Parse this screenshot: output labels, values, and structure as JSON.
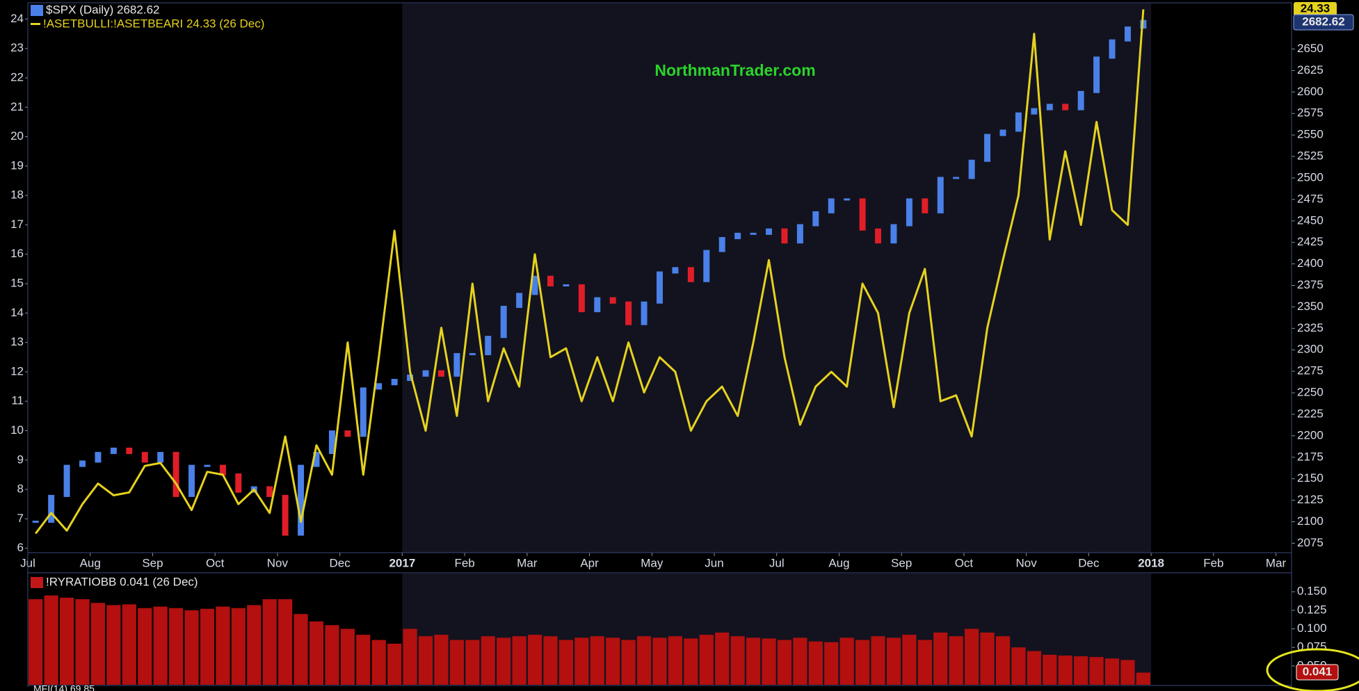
{
  "chart_data": [
    {
      "type": "line",
      "annotation": "NorthmanTrader.com",
      "categories": [
        "Jul",
        null,
        null,
        null,
        "Aug",
        null,
        null,
        null,
        "Sep",
        null,
        null,
        null,
        "Oct",
        null,
        null,
        null,
        "Nov",
        null,
        null,
        null,
        "Dec",
        null,
        null,
        null,
        "2017",
        null,
        null,
        null,
        "Feb",
        null,
        null,
        null,
        "Mar",
        null,
        null,
        null,
        "Apr",
        null,
        null,
        null,
        "May",
        null,
        null,
        null,
        "Jun",
        null,
        null,
        null,
        "Jul",
        null,
        null,
        null,
        "Aug",
        null,
        null,
        null,
        "Sep",
        null,
        null,
        null,
        "Oct",
        null,
        null,
        null,
        "Nov",
        null,
        null,
        null,
        "Dec",
        null,
        null,
        null,
        "2018",
        null,
        null,
        null,
        "Feb",
        null,
        null,
        null,
        "Mar"
      ],
      "series": [
        {
          "name": "$SPX (Daily) 2682.62",
          "axis": "y2",
          "color": "#4a80e8",
          "down_color": "#e01e28",
          "values": [
            2100,
            2130,
            2165,
            2170,
            2180,
            2185,
            2180,
            2170,
            2180,
            2130,
            2165,
            2165,
            2155,
            2135,
            2140,
            2130,
            2085,
            2165,
            2180,
            2205,
            2200,
            2255,
            2260,
            2265,
            2270,
            2275,
            2270,
            2295,
            2295,
            2315,
            2350,
            2365,
            2385,
            2375,
            2375,
            2345,
            2360,
            2355,
            2330,
            2355,
            2390,
            2395,
            2380,
            2415,
            2430,
            2435,
            2435,
            2440,
            2425,
            2445,
            2460,
            2475,
            2475,
            2440,
            2425,
            2445,
            2475,
            2460,
            2500,
            2500,
            2520,
            2550,
            2555,
            2575,
            2580,
            2585,
            2580,
            2600,
            2640,
            2660,
            2675,
            2682.62,
            null,
            null,
            null,
            null,
            null,
            null,
            null,
            null,
            null
          ]
        },
        {
          "name": "!ASETBULLI:!ASETBEARI 24.33 (26 Dec)",
          "axis": "y",
          "color": "#e6d21e",
          "values": [
            6.5,
            7.2,
            6.6,
            7.5,
            8.2,
            7.8,
            7.9,
            8.8,
            8.9,
            8.2,
            7.3,
            8.6,
            8.5,
            7.5,
            8,
            7.2,
            9.8,
            6.9,
            9.5,
            8.5,
            13,
            8.5,
            12.5,
            16.8,
            12,
            10,
            13.5,
            10.5,
            15,
            11,
            12.8,
            11.5,
            16,
            12.5,
            12.8,
            11,
            12.5,
            11,
            13,
            11.3,
            12.5,
            12,
            10,
            11,
            11.5,
            10.5,
            13,
            15.8,
            12.5,
            10.2,
            11.5,
            12,
            11.5,
            15,
            14,
            10.8,
            14,
            15.5,
            11,
            11.2,
            9.8,
            13.5,
            15.8,
            18,
            23.5,
            16.5,
            19.5,
            17,
            20.5,
            17.5,
            17,
            24.33,
            null,
            null,
            null,
            null,
            null,
            null,
            null,
            null,
            null
          ]
        }
      ],
      "ylim": [
        5.85,
        24.53
      ],
      "yticks": [
        6,
        7,
        8,
        9,
        10,
        11,
        12,
        13,
        14,
        15,
        16,
        17,
        18,
        19,
        20,
        21,
        22,
        23,
        24
      ],
      "y2lim": [
        2064,
        2703
      ],
      "y2ticks": [
        2075,
        2100,
        2125,
        2150,
        2175,
        2200,
        2225,
        2250,
        2275,
        2300,
        2325,
        2350,
        2375,
        2400,
        2425,
        2450,
        2475,
        2500,
        2525,
        2550,
        2575,
        2600,
        2625,
        2650
      ]
    },
    {
      "type": "bar",
      "title": "!RYRATIOBB 0.041 (26 Dec)",
      "color": "#b3100f",
      "values": [
        0.14,
        0.145,
        0.142,
        0.14,
        0.135,
        0.132,
        0.133,
        0.128,
        0.13,
        0.128,
        0.125,
        0.127,
        0.13,
        0.128,
        0.132,
        0.14,
        0.14,
        0.12,
        0.11,
        0.105,
        0.1,
        0.092,
        0.085,
        0.08,
        0.1,
        0.09,
        0.092,
        0.085,
        0.085,
        0.09,
        0.088,
        0.09,
        0.092,
        0.09,
        0.085,
        0.088,
        0.09,
        0.088,
        0.085,
        0.09,
        0.088,
        0.09,
        0.087,
        0.092,
        0.095,
        0.09,
        0.088,
        0.087,
        0.085,
        0.088,
        0.083,
        0.082,
        0.088,
        0.085,
        0.09,
        0.088,
        0.092,
        0.085,
        0.095,
        0.09,
        0.1,
        0.095,
        0.09,
        0.075,
        0.07,
        0.065,
        0.064,
        0.063,
        0.062,
        0.06,
        0.058,
        0.041,
        null,
        null,
        null,
        null,
        null,
        null,
        null,
        null,
        null
      ],
      "ylim": [
        0.0246,
        0.1746
      ],
      "yticks": [
        {
          "value": 0.15,
          "label": "0.150"
        },
        {
          "value": 0.125,
          "label": "0.125"
        },
        {
          "value": 0.1,
          "label": "0.100"
        },
        {
          "value": 0.075,
          "label": "0.075"
        },
        {
          "value": 0.05,
          "label": "0.050"
        }
      ]
    }
  ],
  "next_panel_title": "MFI(14) 69.85"
}
